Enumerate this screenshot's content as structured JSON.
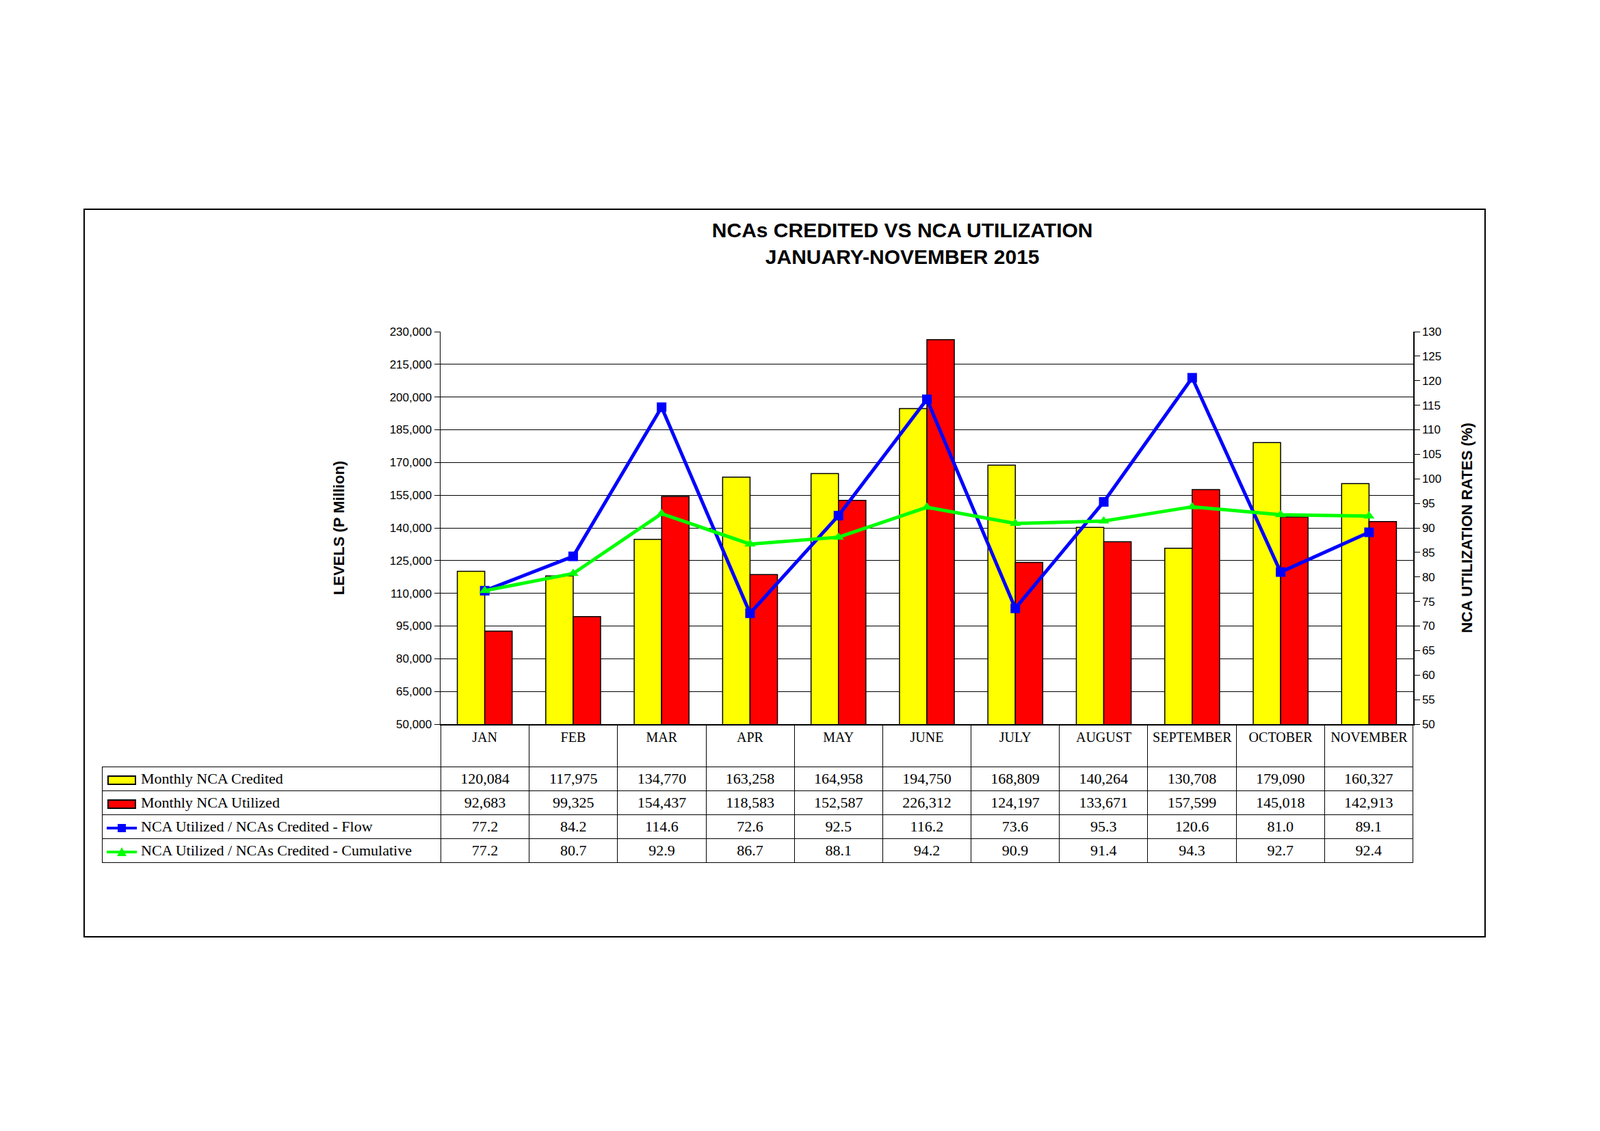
{
  "chart_data": {
    "type": "bar",
    "title": "NCAs CREDITED VS NCA UTILIZATION",
    "subtitle": "JANUARY-NOVEMBER 2015",
    "y_label": "LEVELS (P Million)",
    "y2_label": "NCA UTILIZATION RATES (%)",
    "categories": [
      "JAN",
      "FEB",
      "MAR",
      "APR",
      "MAY",
      "JUNE",
      "JULY",
      "AUGUST",
      "SEPTEMBER",
      "OCTOBER",
      "NOVEMBER"
    ],
    "ylim": [
      50000,
      230000
    ],
    "yticks": [
      {
        "value": 50000,
        "label": "50,000"
      },
      {
        "value": 65000,
        "label": "65,000"
      },
      {
        "value": 80000,
        "label": "80,000"
      },
      {
        "value": 95000,
        "label": "95,000"
      },
      {
        "value": 110000,
        "label": "110,000"
      },
      {
        "value": 125000,
        "label": "125,000"
      },
      {
        "value": 140000,
        "label": "140,000"
      },
      {
        "value": 155000,
        "label": "155,000"
      },
      {
        "value": 170000,
        "label": "170,000"
      },
      {
        "value": 185000,
        "label": "185,000"
      },
      {
        "value": 200000,
        "label": "200,000"
      },
      {
        "value": 215000,
        "label": "215,000"
      },
      {
        "value": 230000,
        "label": "230,000"
      }
    ],
    "y2lim": [
      50,
      130
    ],
    "y2ticks": [
      50,
      55,
      60,
      65,
      70,
      75,
      80,
      85,
      90,
      95,
      100,
      105,
      110,
      115,
      120,
      125,
      130
    ],
    "grid": true,
    "series": [
      {
        "name": "Monthly NCA Credited",
        "type": "bar",
        "color": "#FFFF00",
        "values": [
          120084,
          117975,
          134770,
          163258,
          164958,
          194750,
          168809,
          140264,
          130708,
          179090,
          160327
        ],
        "value_labels": [
          "120,084",
          "117,975",
          "134,770",
          "163,258",
          "164,958",
          "194,750",
          "168,809",
          "140,264",
          "130,708",
          "179,090",
          "160,327"
        ]
      },
      {
        "name": "Monthly NCA Utilized",
        "type": "bar",
        "color": "#FF0000",
        "values": [
          92683,
          99325,
          154437,
          118583,
          152587,
          226312,
          124197,
          133671,
          157599,
          145018,
          142913
        ],
        "value_labels": [
          "92,683",
          "99,325",
          "154,437",
          "118,583",
          "152,587",
          "226,312",
          "124,197",
          "133,671",
          "157,599",
          "145,018",
          "142,913"
        ]
      },
      {
        "name": "NCA Utilized / NCAs Credited - Flow",
        "type": "line",
        "axis": "y2",
        "color": "#0000FF",
        "marker": "square",
        "values": [
          77.2,
          84.2,
          114.6,
          72.6,
          92.5,
          116.2,
          73.6,
          95.3,
          120.6,
          81.0,
          89.1
        ],
        "value_labels": [
          "77.2",
          "84.2",
          "114.6",
          "72.6",
          "92.5",
          "116.2",
          "73.6",
          "95.3",
          "120.6",
          "81.0",
          "89.1"
        ]
      },
      {
        "name": "NCA Utilized / NCAs Credited - Cumulative",
        "type": "line",
        "axis": "y2",
        "color": "#00FF00",
        "marker": "triangle-up",
        "values": [
          77.2,
          80.7,
          92.9,
          86.7,
          88.1,
          94.2,
          90.9,
          91.4,
          94.3,
          92.7,
          92.4
        ],
        "value_labels": [
          "77.2",
          "80.7",
          "92.9",
          "86.7",
          "88.1",
          "94.2",
          "90.9",
          "91.4",
          "94.3",
          "92.7",
          "92.4"
        ]
      }
    ]
  }
}
